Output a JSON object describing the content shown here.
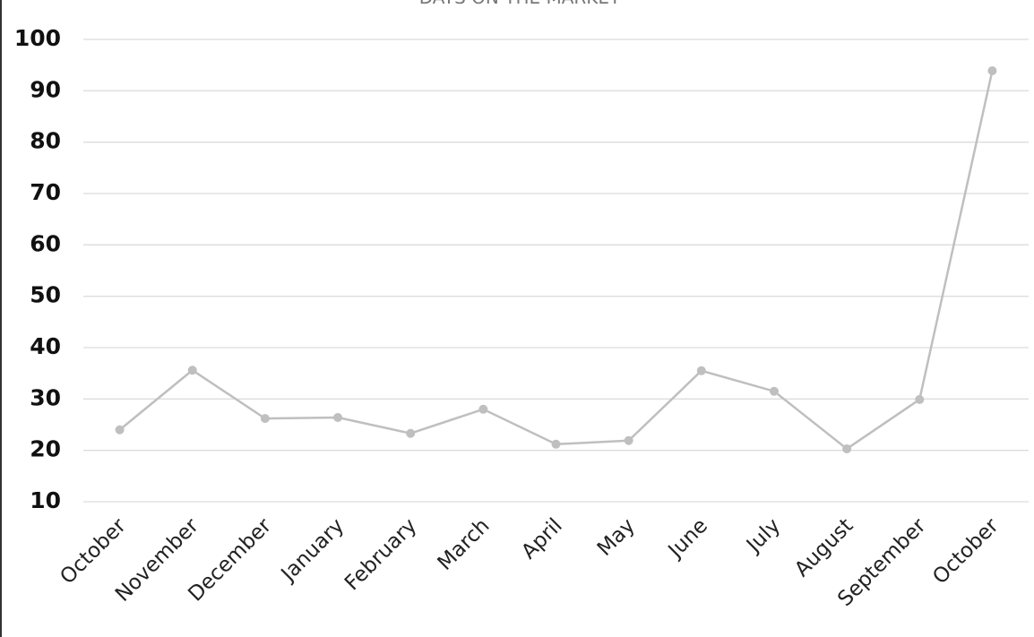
{
  "chart_data": {
    "type": "line",
    "title": "DAYS ON THE MARKET",
    "categories": [
      "October",
      "November",
      "December",
      "January",
      "February",
      "March",
      "April",
      "May",
      "June",
      "July",
      "August",
      "September",
      "October"
    ],
    "series": [
      {
        "name": "Days on the market",
        "color": "#bfbfbf",
        "values": [
          24,
          35.6,
          26.2,
          26.4,
          23.3,
          28,
          21.2,
          21.9,
          35.5,
          31.5,
          20.3,
          29.9,
          93.9
        ]
      }
    ],
    "ylim": [
      10,
      100
    ],
    "yticks": [
      10,
      20,
      30,
      40,
      50,
      60,
      70,
      80,
      90,
      100
    ],
    "grid": true
  }
}
